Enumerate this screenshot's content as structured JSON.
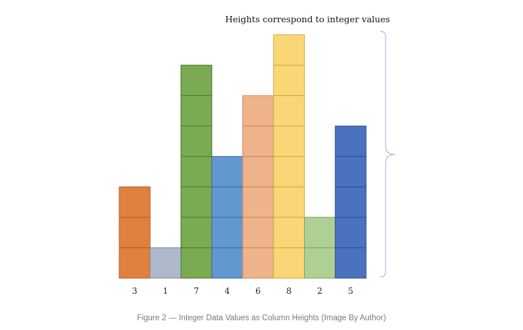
{
  "annotation": "Heights correspond to integer values",
  "caption": "Figure 2 — Integer Data Values as Column Heights (Image By Author)",
  "columns": [
    {
      "value": 3,
      "label": "3",
      "fill": "#E0803F",
      "stroke": "#B35F26"
    },
    {
      "value": 1,
      "label": "1",
      "fill": "#ADB9CA",
      "stroke": "#7F8B9C"
    },
    {
      "value": 7,
      "label": "7",
      "fill": "#7AAA52",
      "stroke": "#4F7A2E"
    },
    {
      "value": 4,
      "label": "4",
      "fill": "#6397CF",
      "stroke": "#3B6EA5"
    },
    {
      "value": 6,
      "label": "6",
      "fill": "#EEB38A",
      "stroke": "#C9895F"
    },
    {
      "value": 8,
      "label": "8",
      "fill": "#F9D776",
      "stroke": "#CFAA3E"
    },
    {
      "value": 2,
      "label": "2",
      "fill": "#AED092",
      "stroke": "#7FA468"
    },
    {
      "value": 5,
      "label": "5",
      "fill": "#4B72BE",
      "stroke": "#2F4F8E"
    }
  ],
  "brace_color": "#B3A6D6"
}
